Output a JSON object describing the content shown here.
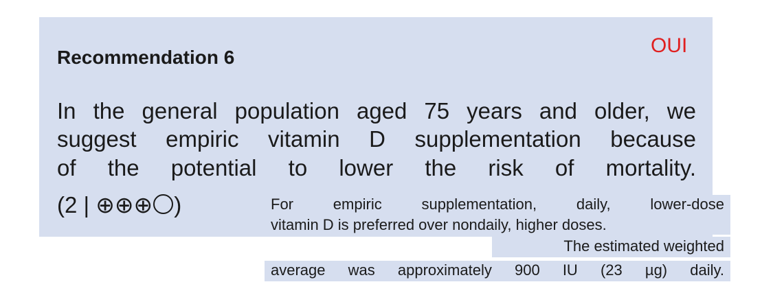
{
  "recommendation": {
    "heading": "Recommendation 6",
    "stamp": "OUI",
    "lines": [
      "In the general population aged 75 years and older, we",
      "suggest empiric vitamin D supplementation because",
      "of the potential to lower the risk of mortality."
    ],
    "grade_prefix": "(2 | ⊕⊕⊕",
    "grade_suffix": ")"
  },
  "note": {
    "lines": [
      "For empiric supplementation, daily, lower-dose",
      "vitamin D is preferred over nondaily, higher doses.",
      "The estimated weighted",
      "average was approximately 900 IU (23 µg) daily."
    ]
  },
  "colors": {
    "box_background": "#d6deef",
    "stamp": "#e02020",
    "text": "#1a1a1a"
  }
}
